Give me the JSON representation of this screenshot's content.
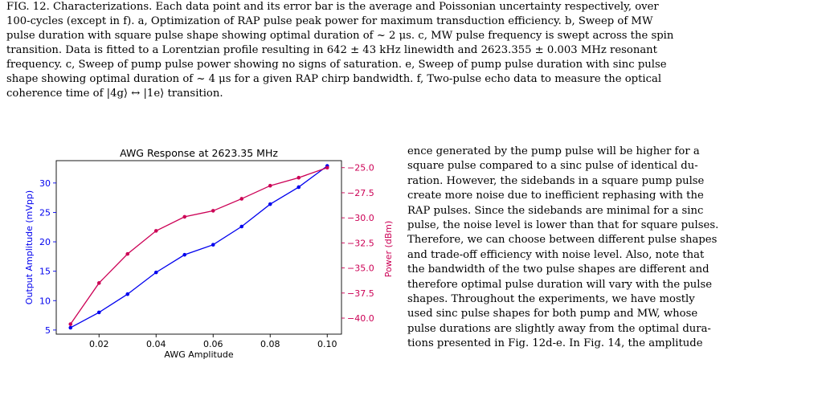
{
  "caption": {
    "lines": [
      "FIG. 12. Characterizations. Each data point and its error bar is the average and Poissonian uncertainty respectively, over",
      "100-cycles (except in f). a, Optimization of RAP pulse peak power for maximum transduction efficiency. b, Sweep of MW",
      "pulse duration with square pulse shape showing optimal duration of ~ 2 μs. c, MW pulse frequency is swept across the spin",
      "transition. Data is fitted to a Lorentzian profile resulting in 642 ± 43 kHz linewidth and 2623.355 ± 0.003 MHz resonant",
      "frequency. c, Sweep of pump pulse power showing no signs of saturation. e, Sweep of pump pulse duration with sinc pulse",
      "shape showing optimal duration of ~ 4 μs for a given RAP chirp bandwidth. f, Two-pulse echo data to measure the optical",
      "coherence time of |4g⟩ ↔ |1e⟩ transition."
    ]
  },
  "body": {
    "lines": [
      "ence generated by the pump pulse will be higher for a",
      "square pulse compared to a sinc pulse of identical du-",
      "ration. However, the sidebands in a square pump pulse",
      "create more noise due to inefficient rephasing with the",
      "RAP pulses. Since the sidebands are minimal for a sinc",
      "pulse, the noise level is lower than that for square pulses.",
      "Therefore, we can choose between different pulse shapes",
      "and trade-off efficiency with noise level. Also, note that",
      "the bandwidth of the two pulse shapes are different and",
      "therefore optimal pulse duration will vary with the pulse",
      "shapes.  Throughout the experiments, we have mostly",
      "used sinc pulse shapes for both pump and MW, whose",
      "pulse durations are slightly away from the optimal dura-",
      "tions presented in Fig. 12d-e.  In Fig. 14, the amplitude"
    ]
  },
  "chart_data": {
    "type": "line",
    "title": "AWG Response at 2623.35 MHz",
    "xlabel": "AWG Amplitude",
    "ylabel": "Output Amplitude (mVpp)",
    "y2label": "Power (dBm)",
    "x": [
      0.01,
      0.02,
      0.03,
      0.04,
      0.05,
      0.06,
      0.07,
      0.08,
      0.09,
      0.1
    ],
    "xlim": [
      0.005,
      0.105
    ],
    "ylim": [
      4.3,
      33.8
    ],
    "y2lim": [
      -41.6,
      -24.3
    ],
    "xticks": [
      0.02,
      0.04,
      0.06,
      0.08,
      0.1
    ],
    "xtick_labels": [
      "0.02",
      "0.04",
      "0.06",
      "0.08",
      "0.10"
    ],
    "yticks": [
      5,
      10,
      15,
      20,
      25,
      30
    ],
    "ytick_labels": [
      "5",
      "10",
      "15",
      "20",
      "25",
      "30"
    ],
    "y2ticks": [
      -25.0,
      -27.5,
      -30.0,
      -32.5,
      -35.0,
      -37.5,
      -40.0
    ],
    "y2tick_labels": [
      "−25.0",
      "−27.5",
      "−30.0",
      "−32.5",
      "−35.0",
      "−37.5",
      "−40.0"
    ],
    "series": [
      {
        "axis": "left",
        "color": "#0000ee",
        "values": [
          5.4,
          8.0,
          11.1,
          14.8,
          17.8,
          19.5,
          22.6,
          26.4,
          29.3,
          32.9
        ]
      },
      {
        "axis": "right",
        "color": "#cc0055",
        "values": [
          -40.6,
          -36.5,
          -33.6,
          -31.3,
          -29.9,
          -29.3,
          -28.1,
          -26.8,
          -26.0,
          -25.0
        ]
      }
    ],
    "left_axis_color": "#0000ee",
    "right_axis_color": "#cc0055",
    "grid": false
  }
}
